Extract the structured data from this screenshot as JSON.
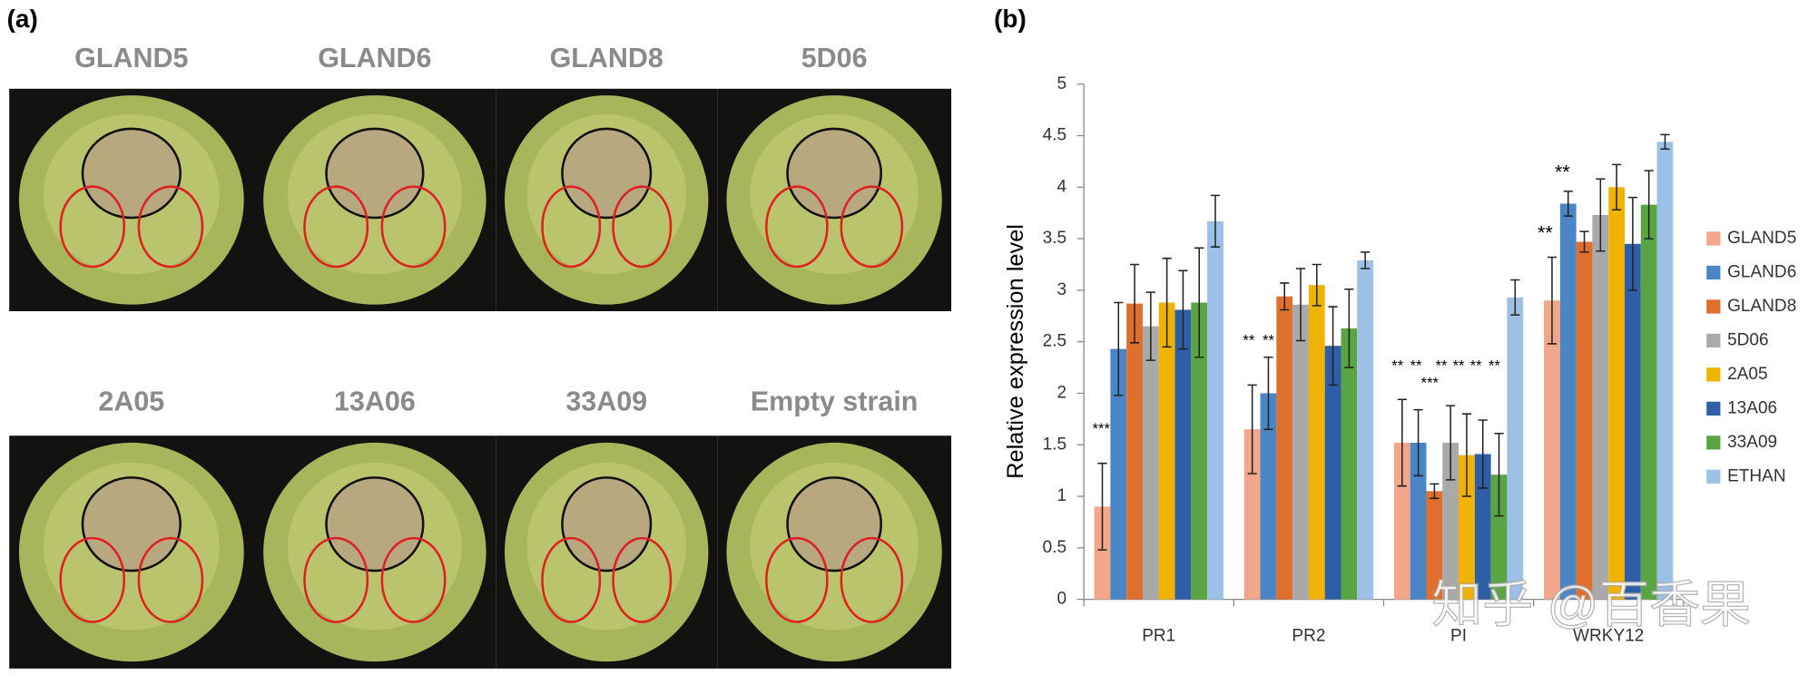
{
  "panel_a": {
    "label": "(a)",
    "leaves": [
      "GLAND5",
      "GLAND6",
      "GLAND8",
      "5D06",
      "2A05",
      "13A06",
      "33A09",
      "Empty strain"
    ]
  },
  "chart_data": {
    "type": "bar",
    "label": "(b)",
    "y_label": "Relative expression level",
    "categories": [
      "PR1",
      "PR2",
      "PI",
      "WRKY12"
    ],
    "series": [
      {
        "name": "GLAND5",
        "color": "#f2a68a",
        "values": [
          0.9,
          1.65,
          1.52,
          2.9
        ],
        "errors": [
          0.42,
          0.43,
          0.42,
          0.42
        ]
      },
      {
        "name": "GLAND6",
        "color": "#4a86c5",
        "values": [
          2.43,
          2.0,
          1.52,
          3.84
        ],
        "errors": [
          0.45,
          0.35,
          0.32,
          0.12
        ]
      },
      {
        "name": "GLAND8",
        "color": "#e06f2e",
        "values": [
          2.87,
          2.94,
          1.05,
          3.47
        ],
        "errors": [
          0.38,
          0.13,
          0.07,
          0.1
        ]
      },
      {
        "name": "5D06",
        "color": "#a9a9a9",
        "values": [
          2.65,
          2.86,
          1.52,
          3.73
        ],
        "errors": [
          0.33,
          0.35,
          0.36,
          0.35
        ]
      },
      {
        "name": "2A05",
        "color": "#efb300",
        "values": [
          2.88,
          3.05,
          1.4,
          4.0
        ],
        "errors": [
          0.43,
          0.2,
          0.4,
          0.22
        ]
      },
      {
        "name": "13A06",
        "color": "#2e5ea6",
        "values": [
          2.81,
          2.46,
          1.41,
          3.45
        ],
        "errors": [
          0.38,
          0.38,
          0.33,
          0.45
        ]
      },
      {
        "name": "33A09",
        "color": "#5ba444",
        "values": [
          2.88,
          2.63,
          1.21,
          3.83
        ],
        "errors": [
          0.53,
          0.38,
          0.4,
          0.33
        ]
      },
      {
        "name": "ETHAN",
        "color": "#9dc0e6",
        "values": [
          3.67,
          3.29,
          2.93,
          4.44
        ],
        "errors": [
          0.25,
          0.08,
          0.17,
          0.07
        ]
      }
    ],
    "ylim": [
      0,
      5
    ],
    "yticks": [
      0,
      0.5,
      1,
      1.5,
      2,
      2.5,
      3,
      3.5,
      4,
      4.5,
      5
    ],
    "annotations": [
      "***",
      "**",
      "**",
      "**",
      "**",
      "***",
      "**",
      "**",
      "**",
      "**",
      "**",
      "**"
    ],
    "watermark": "知乎 @百香果"
  }
}
